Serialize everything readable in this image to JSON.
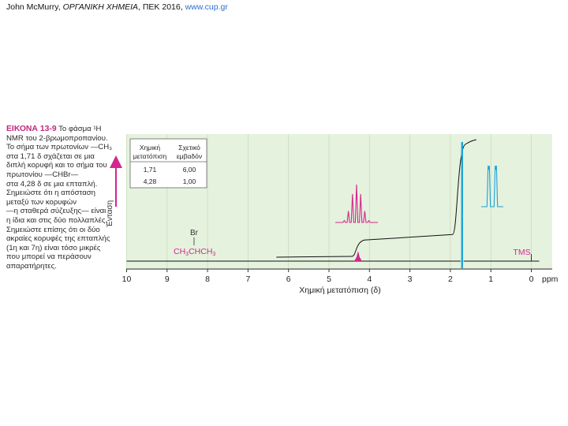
{
  "header": {
    "text_plain": "John McMurry, ",
    "text_italic": "ΟΡΓΑΝΙΚΗ ΧΗΜΕΙΑ",
    "text_after": ", ΠΕΚ 2016, ",
    "link": "www.cup.gr"
  },
  "caption": {
    "figure_label": "ΕΙΚΟΝΑ 13-9",
    "lines": [
      "Το φάσμα ¹H",
      "NMR του 2-βρωμοπροπανίου.",
      "Το σήμα των πρωτονίων —CH₃",
      "στα 1,71 δ σχάζεται σε μια",
      "διπλή κορυφή και το σήμα του",
      "πρωτονίου —CHBr—",
      "στα 4,28 δ σε μια επταπλή.",
      "Σημειώστε ότι η απόσταση",
      "μεταξύ των κορυφών",
      "—η σταθερά σύζευξης— είναι",
      "η ίδια και στις δύο πολλαπλές.",
      "Σημειώστε επίσης ότι οι δύο",
      "ακραίες κορυφές της επταπλής",
      "(1η και 7η) είναι τόσο μικρές",
      "που μπορεί να περάσουν",
      "απαρατήρητες."
    ]
  },
  "chart_data": {
    "type": "line",
    "title": "",
    "xlabel": "Χημική μετατόπιση (δ)",
    "ylabel": "Ένταση",
    "x_unit_label": "ppm",
    "xlim": [
      10,
      0
    ],
    "x_ticks": [
      "10",
      "9",
      "8",
      "7",
      "6",
      "5",
      "4",
      "3",
      "2",
      "1",
      "0"
    ],
    "grid": true,
    "table": {
      "headers": [
        "Χημική μετατόπιση",
        "Σχετικό εμβαδόν"
      ],
      "rows": [
        [
          "1,71",
          "6,00"
        ],
        [
          "4,28",
          "1,00"
        ]
      ]
    },
    "peaks": [
      {
        "shift": 1.71,
        "multiplicity": "doublet",
        "relative_area": 6.0,
        "color": "#1aa3d9"
      },
      {
        "shift": 4.28,
        "multiplicity": "septet",
        "relative_area": 1.0,
        "color": "#d2288c"
      }
    ],
    "reference_peak": {
      "label": "TMS",
      "shift": 0.0
    },
    "structure": {
      "top": "Br",
      "bottom": "CH3CHCH3"
    },
    "colors": {
      "doublet": "#1aa3d9",
      "septet": "#d2288c",
      "background": "#e5f2de",
      "grid": "#c8dcbc"
    }
  }
}
